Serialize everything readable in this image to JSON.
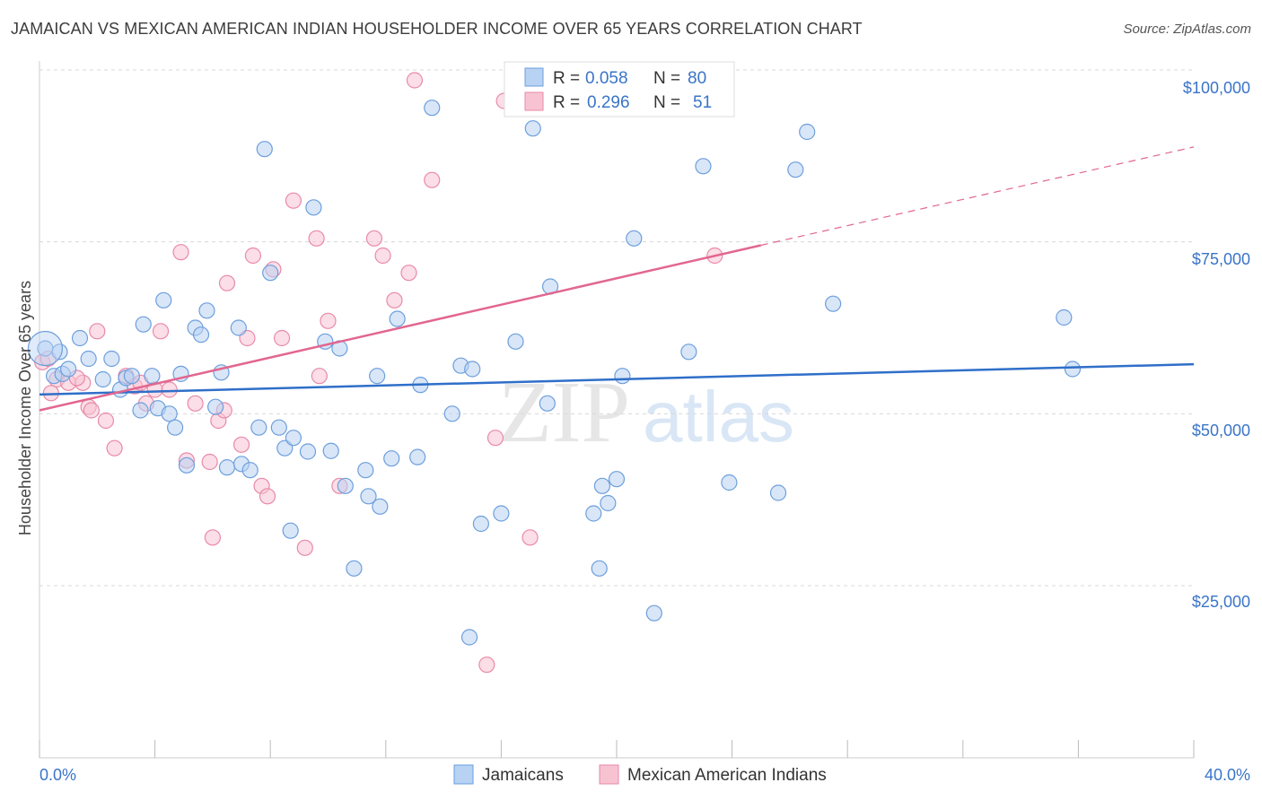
{
  "title": "JAMAICAN VS MEXICAN AMERICAN INDIAN HOUSEHOLDER INCOME OVER 65 YEARS CORRELATION CHART",
  "source": "Source: ZipAtlas.com",
  "watermark": {
    "zip": "ZIP",
    "atlas": "atlas"
  },
  "colors": {
    "blue_fill": "#b8d2f3",
    "blue_stroke": "#6d9fdc",
    "blue_line": "#2f6fc9",
    "pink_fill": "#f7c3d3",
    "pink_stroke": "#e98aa8",
    "pink_line": "#e2668f",
    "grid": "#d8d8d8",
    "tick_text": "#3a74c8"
  },
  "legend_top": {
    "rows": [
      {
        "r_label": "R =",
        "r_value": "0.058",
        "n_label": "N =",
        "n_value": "80"
      },
      {
        "r_label": "R =",
        "r_value": "0.296",
        "n_label": "N =",
        "n_value": "51"
      }
    ]
  },
  "legend_bottom": {
    "items": [
      "Jamaicans",
      "Mexican American Indians"
    ]
  },
  "chart_data": {
    "type": "scatter",
    "ylabel": "Householder Income Over 65 years",
    "xlabel": "",
    "xlim": [
      0,
      40
    ],
    "ylim": [
      5000,
      105000
    ],
    "x_tick_labels": [
      "0.0%",
      "40.0%"
    ],
    "y_tick_labels": [
      "$25,000",
      "$50,000",
      "$75,000",
      "$100,000"
    ],
    "y_ticks": [
      25000,
      50000,
      75000,
      100000
    ],
    "grid": true,
    "legend_placement": "top-center",
    "series": [
      {
        "name": "Jamaicans",
        "trend": {
          "x0": 0,
          "y0": 52800,
          "x1": 40,
          "y1": 57200,
          "dashed_from": null
        },
        "points": [
          [
            0.2,
            59500
          ],
          [
            0.5,
            55500
          ],
          [
            0.7,
            59000
          ],
          [
            0.8,
            55800
          ],
          [
            1.0,
            56500
          ],
          [
            1.4,
            61000
          ],
          [
            1.7,
            58000
          ],
          [
            2.2,
            55000
          ],
          [
            2.5,
            58000
          ],
          [
            2.8,
            53500
          ],
          [
            3.0,
            55200
          ],
          [
            3.2,
            55500
          ],
          [
            3.5,
            50500
          ],
          [
            3.6,
            63000
          ],
          [
            3.9,
            55500
          ],
          [
            4.1,
            50800
          ],
          [
            4.3,
            66500
          ],
          [
            4.5,
            50000
          ],
          [
            4.7,
            48000
          ],
          [
            4.9,
            55800
          ],
          [
            5.1,
            42500
          ],
          [
            5.4,
            62500
          ],
          [
            5.6,
            61500
          ],
          [
            5.8,
            65000
          ],
          [
            6.1,
            51000
          ],
          [
            6.3,
            56000
          ],
          [
            6.5,
            42200
          ],
          [
            6.9,
            62500
          ],
          [
            7.0,
            42700
          ],
          [
            7.3,
            41800
          ],
          [
            7.6,
            48000
          ],
          [
            7.8,
            88500
          ],
          [
            8.0,
            70500
          ],
          [
            8.3,
            48000
          ],
          [
            8.5,
            45000
          ],
          [
            8.7,
            33000
          ],
          [
            8.8,
            46500
          ],
          [
            9.3,
            44500
          ],
          [
            9.5,
            80000
          ],
          [
            9.9,
            60500
          ],
          [
            10.1,
            44600
          ],
          [
            10.4,
            59500
          ],
          [
            10.6,
            39500
          ],
          [
            10.9,
            27500
          ],
          [
            11.3,
            41800
          ],
          [
            11.4,
            38000
          ],
          [
            11.7,
            55500
          ],
          [
            11.8,
            36500
          ],
          [
            12.2,
            43500
          ],
          [
            12.4,
            63800
          ],
          [
            13.1,
            43700
          ],
          [
            13.2,
            54200
          ],
          [
            13.6,
            94500
          ],
          [
            14.3,
            50000
          ],
          [
            14.6,
            57000
          ],
          [
            14.9,
            17500
          ],
          [
            15.0,
            56500
          ],
          [
            15.3,
            34000
          ],
          [
            16.0,
            35500
          ],
          [
            16.5,
            60500
          ],
          [
            17.1,
            91500
          ],
          [
            17.6,
            51500
          ],
          [
            17.7,
            68500
          ],
          [
            19.2,
            35500
          ],
          [
            19.4,
            27500
          ],
          [
            19.5,
            39500
          ],
          [
            19.7,
            37000
          ],
          [
            20.0,
            40500
          ],
          [
            20.2,
            55500
          ],
          [
            20.6,
            75500
          ],
          [
            21.3,
            21000
          ],
          [
            22.5,
            59000
          ],
          [
            23.0,
            86000
          ],
          [
            23.9,
            40000
          ],
          [
            25.6,
            38500
          ],
          [
            26.2,
            85500
          ],
          [
            26.6,
            91000
          ],
          [
            27.5,
            66000
          ],
          [
            35.5,
            64000
          ],
          [
            35.8,
            56500
          ]
        ]
      },
      {
        "name": "Mexican American Indians",
        "trend": {
          "x0": 0,
          "y0": 50500,
          "x1": 25,
          "y1": 74500,
          "dashed_to_x": 40,
          "dashed_to_y": 88800
        },
        "points": [
          [
            0.1,
            57500
          ],
          [
            0.3,
            58000
          ],
          [
            0.6,
            55000
          ],
          [
            1.0,
            54500
          ],
          [
            1.5,
            54500
          ],
          [
            1.7,
            51000
          ],
          [
            1.8,
            50500
          ],
          [
            2.0,
            62000
          ],
          [
            2.3,
            49000
          ],
          [
            2.6,
            45000
          ],
          [
            3.0,
            55500
          ],
          [
            3.3,
            54000
          ],
          [
            3.5,
            54500
          ],
          [
            3.7,
            51500
          ],
          [
            4.0,
            53500
          ],
          [
            4.2,
            62000
          ],
          [
            4.5,
            53500
          ],
          [
            4.9,
            73500
          ],
          [
            5.1,
            43200
          ],
          [
            5.4,
            51500
          ],
          [
            5.9,
            43000
          ],
          [
            6.0,
            32000
          ],
          [
            6.2,
            49000
          ],
          [
            6.4,
            50500
          ],
          [
            6.5,
            69000
          ],
          [
            7.0,
            45500
          ],
          [
            7.2,
            61000
          ],
          [
            7.4,
            73000
          ],
          [
            7.7,
            39500
          ],
          [
            7.9,
            38000
          ],
          [
            8.1,
            71000
          ],
          [
            8.4,
            61000
          ],
          [
            8.8,
            81000
          ],
          [
            9.2,
            30500
          ],
          [
            9.6,
            75500
          ],
          [
            9.7,
            55500
          ],
          [
            10.0,
            63500
          ],
          [
            10.4,
            39500
          ],
          [
            11.6,
            75500
          ],
          [
            11.9,
            73000
          ],
          [
            12.3,
            66500
          ],
          [
            12.8,
            70500
          ],
          [
            13.0,
            98500
          ],
          [
            13.6,
            84000
          ],
          [
            15.5,
            13500
          ],
          [
            15.8,
            46500
          ],
          [
            16.1,
            95500
          ],
          [
            17.0,
            32000
          ],
          [
            23.4,
            73000
          ],
          [
            0.4,
            53000
          ],
          [
            1.3,
            55200
          ]
        ]
      }
    ]
  }
}
